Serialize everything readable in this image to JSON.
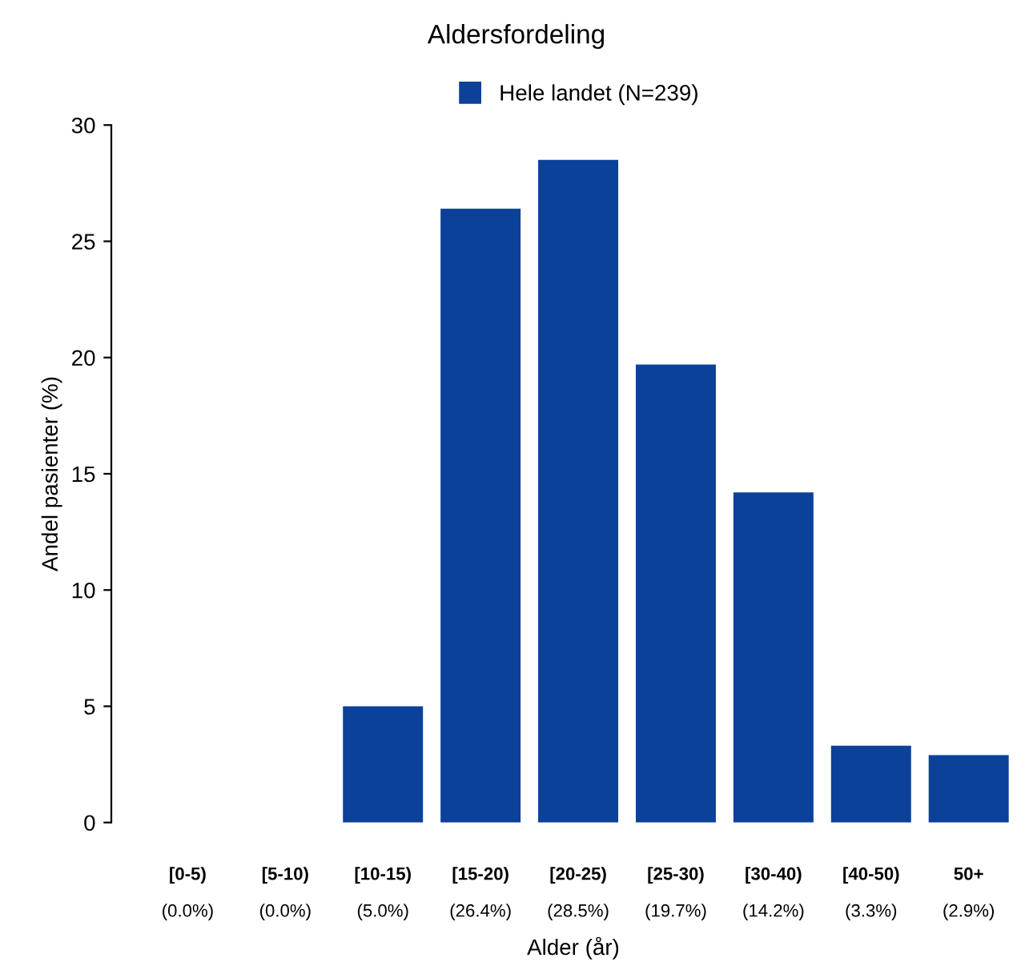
{
  "chart_data": {
    "type": "bar",
    "title": "Aldersfordeling",
    "xlabel": "Alder (år)",
    "ylabel": "Andel pasienter (%)",
    "categories": [
      "[0-5)",
      "[5-10)",
      "[10-15)",
      "[15-20)",
      "[20-25)",
      "[25-30)",
      "[30-40)",
      "[40-50)",
      "50+"
    ],
    "series": [
      {
        "name": "Hele landet (N=239)",
        "color": "#0b4199",
        "values": [
          0.0,
          0.0,
          5.0,
          26.4,
          28.5,
          19.7,
          14.2,
          3.3,
          2.9
        ],
        "value_labels": [
          "(0.0%)",
          "(0.0%)",
          "(5.0%)",
          "(26.4%)",
          "(28.5%)",
          "(19.7%)",
          "(14.2%)",
          "(3.3%)",
          "(2.9%)"
        ]
      }
    ],
    "ylim": [
      0,
      30
    ],
    "yticks": [
      0,
      5,
      10,
      15,
      20,
      25,
      30
    ],
    "grid": false,
    "legend": "top"
  }
}
